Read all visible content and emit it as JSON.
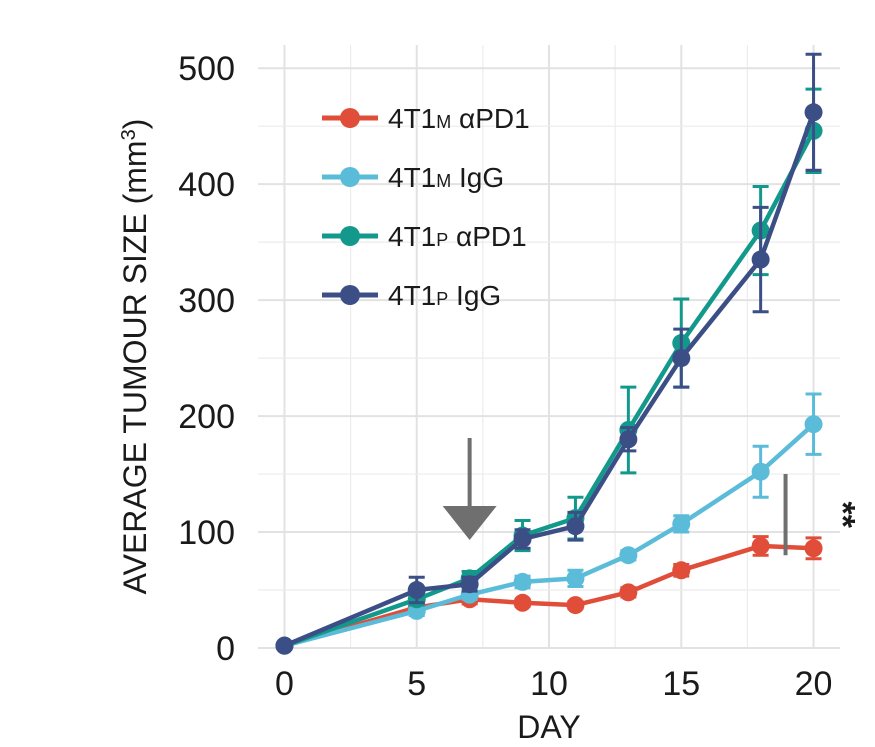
{
  "chart_data": {
    "type": "line",
    "title": "",
    "xlabel": "DAY",
    "ylabel": "AVERAGE TUMOUR SIZE (mm",
    "ylabel_sup": "3",
    "ylabel_close": ")",
    "xlim": [
      -1,
      21
    ],
    "ylim": [
      0,
      520
    ],
    "xticks": [
      0,
      5,
      10,
      15,
      20
    ],
    "yticks": [
      0,
      100,
      200,
      300,
      400,
      500
    ],
    "xtick_labels": [
      "0",
      "5",
      "10",
      "15",
      "20"
    ],
    "ytick_labels": [
      "0",
      "100",
      "200",
      "300",
      "400",
      "500"
    ],
    "legend_position": "top-left",
    "grid": true,
    "series": [
      {
        "name": "4T1M αPD1",
        "legend_main": "4T1",
        "legend_sub": "M",
        "legend_rest": " αPD1",
        "color": "#e04e39",
        "x": [
          0,
          5,
          7,
          9,
          11,
          13,
          15,
          18,
          20
        ],
        "y": [
          2,
          35,
          42,
          39,
          37,
          48,
          67,
          88,
          86
        ],
        "err": [
          0,
          4,
          4,
          3,
          3,
          4,
          5,
          8,
          9
        ]
      },
      {
        "name": "4T1M IgG",
        "legend_main": "4T1",
        "legend_sub": "M",
        "legend_rest": " IgG",
        "color": "#5bbcd9",
        "x": [
          0,
          5,
          7,
          9,
          11,
          13,
          15,
          18,
          20
        ],
        "y": [
          2,
          32,
          46,
          57,
          60,
          80,
          107,
          152,
          193
        ],
        "err": [
          0,
          4,
          4,
          5,
          7,
          4,
          7,
          22,
          26
        ]
      },
      {
        "name": "4T1P αPD1",
        "legend_main": "4T1",
        "legend_sub": "P",
        "legend_rest": " αPD1",
        "color": "#13998c",
        "x": [
          0,
          5,
          7,
          9,
          11,
          13,
          15,
          18,
          20
        ],
        "y": [
          2,
          42,
          60,
          97,
          112,
          188,
          263,
          360,
          446
        ],
        "err": [
          0,
          5,
          6,
          13,
          18,
          37,
          38,
          38,
          36
        ]
      },
      {
        "name": "4T1P IgG",
        "legend_main": "4T1",
        "legend_sub": "P",
        "legend_rest": " IgG",
        "color": "#3b4e86",
        "x": [
          0,
          5,
          7,
          9,
          11,
          13,
          15,
          18,
          20
        ],
        "y": [
          2,
          50,
          55,
          94,
          105,
          180,
          250,
          335,
          462
        ],
        "err": [
          0,
          11,
          6,
          8,
          12,
          10,
          25,
          45,
          50
        ]
      }
    ],
    "annotations": {
      "arrow_day": 7,
      "arrow_color": "#6f6f6f",
      "significance_label": "**",
      "significance_day": 20,
      "significance_range": [
        80,
        150
      ]
    }
  }
}
